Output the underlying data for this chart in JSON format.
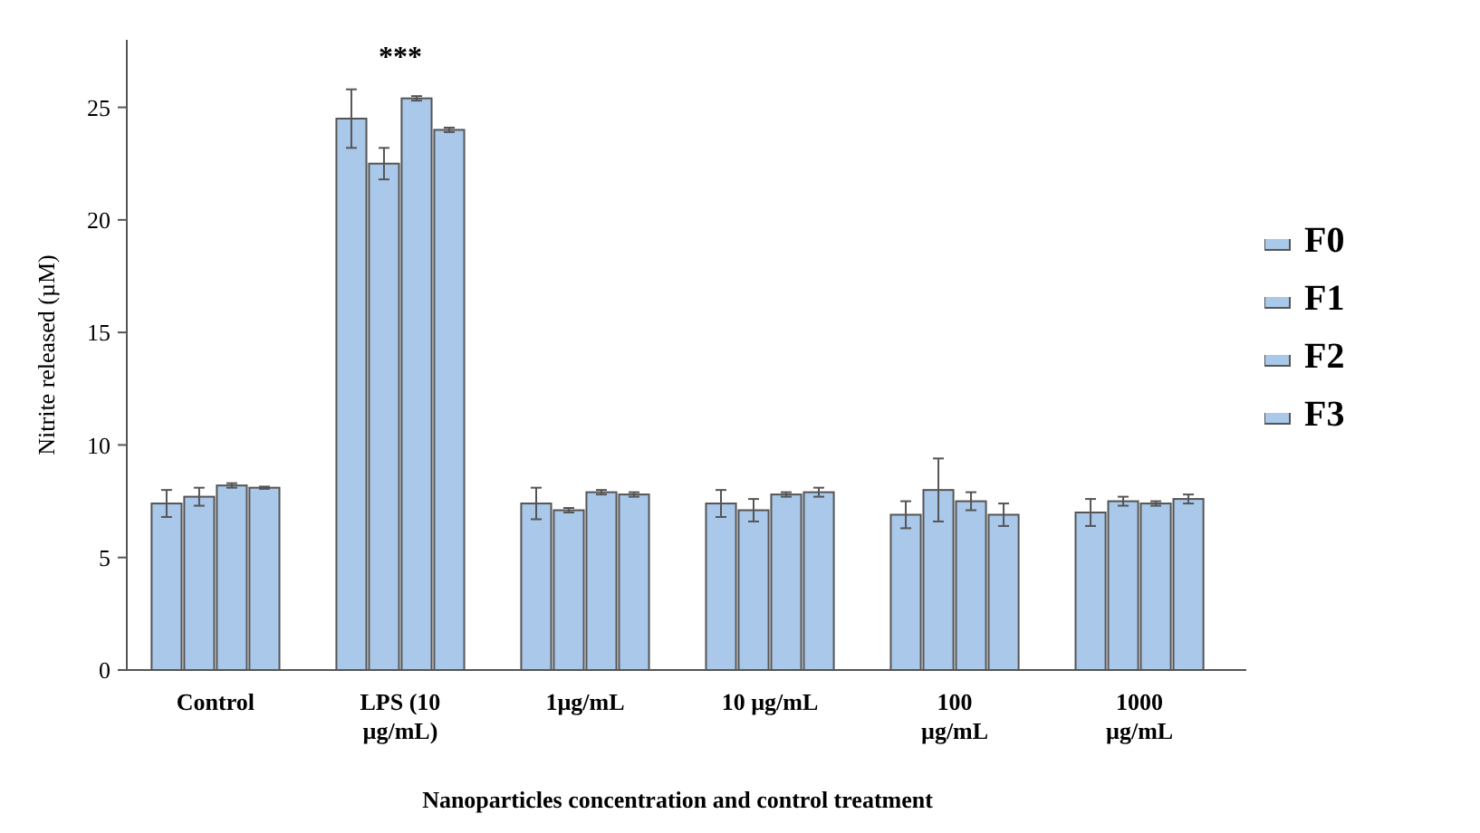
{
  "chart_data": {
    "type": "bar",
    "xlabel": "Nanoparticles concentration and control treatment",
    "ylabel": "Nitrite released (µM)",
    "categories": [
      "Control",
      "LPS (10 µg/mL)",
      "1µg/mL",
      "10 µg/mL",
      "100 µg/mL",
      "1000 µg/mL"
    ],
    "series": [
      {
        "name": "F0",
        "color": "#a9c8ea",
        "values": [
          7.4,
          24.5,
          7.4,
          7.4,
          6.9,
          7.0
        ],
        "errors": [
          0.6,
          1.3,
          0.7,
          0.6,
          0.6,
          0.6
        ]
      },
      {
        "name": "F1",
        "color": "#a9c8ea",
        "values": [
          7.7,
          22.5,
          7.1,
          7.1,
          8.0,
          7.5
        ],
        "errors": [
          0.4,
          0.7,
          0.1,
          0.5,
          1.4,
          0.2
        ]
      },
      {
        "name": "F2",
        "color": "#a9c8ea",
        "values": [
          8.2,
          25.4,
          7.9,
          7.8,
          7.5,
          7.4
        ],
        "errors": [
          0.1,
          0.1,
          0.1,
          0.1,
          0.4,
          0.1
        ]
      },
      {
        "name": "F3",
        "color": "#a9c8ea",
        "values": [
          8.1,
          24.0,
          7.8,
          7.9,
          6.9,
          7.6
        ],
        "errors": [
          0.05,
          0.1,
          0.1,
          0.2,
          0.5,
          0.2
        ]
      }
    ],
    "ylim": [
      0,
      28
    ],
    "yticks": [
      0,
      5,
      10,
      15,
      20,
      25
    ],
    "grid": false,
    "legend": "right",
    "annotations": [
      "***"
    ]
  }
}
